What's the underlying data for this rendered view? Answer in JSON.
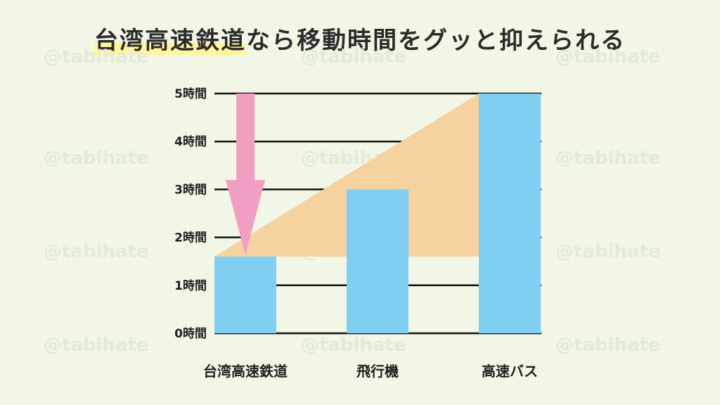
{
  "title": {
    "highlight": "台湾高速鉄道",
    "rest": "なら移動時間をグッと抑えられる"
  },
  "watermark": "@tabihate",
  "colors": {
    "background": "#f1f6e6",
    "bar": "#81cef3",
    "band": "#f6d2a1",
    "arrow": "#f09fc3",
    "highlight": "#fff59a",
    "gridline": "#111111"
  },
  "chart_data": {
    "type": "bar",
    "categories": [
      "台湾高速鉄道",
      "飛行機",
      "高速バス"
    ],
    "values": [
      1.6,
      3,
      5
    ],
    "y_ticks": [
      "0時間",
      "1時間",
      "2時間",
      "3時間",
      "4時間",
      "5時間"
    ],
    "ylim": [
      0,
      5
    ],
    "grid": true
  }
}
